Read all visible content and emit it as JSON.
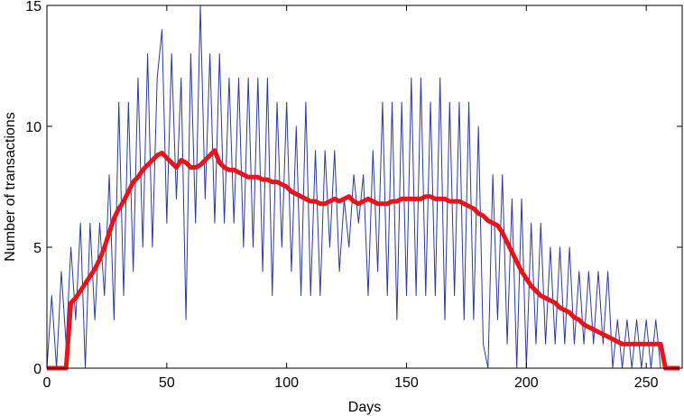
{
  "chart_data": {
    "type": "line",
    "x_label": "Days",
    "y_label": "Number of transactions",
    "x": [
      0,
      2,
      4,
      6,
      8,
      10,
      12,
      14,
      16,
      18,
      20,
      22,
      24,
      26,
      28,
      30,
      32,
      34,
      36,
      38,
      40,
      42,
      44,
      46,
      48,
      50,
      52,
      54,
      56,
      58,
      60,
      62,
      64,
      66,
      68,
      70,
      72,
      74,
      76,
      78,
      80,
      82,
      84,
      86,
      88,
      90,
      92,
      94,
      96,
      98,
      100,
      102,
      104,
      106,
      108,
      110,
      112,
      114,
      116,
      118,
      120,
      122,
      124,
      126,
      128,
      130,
      132,
      134,
      136,
      138,
      140,
      142,
      144,
      146,
      148,
      150,
      152,
      154,
      156,
      158,
      160,
      162,
      164,
      166,
      168,
      170,
      172,
      174,
      176,
      178,
      180,
      182,
      184,
      186,
      188,
      190,
      192,
      194,
      196,
      198,
      200,
      202,
      204,
      206,
      208,
      210,
      212,
      214,
      216,
      218,
      220,
      222,
      224,
      226,
      228,
      230,
      232,
      234,
      236,
      238,
      240,
      242,
      244,
      246,
      248,
      250,
      252,
      254,
      256,
      258,
      260,
      262,
      264
    ],
    "series": [
      {
        "color": "#2b3a9e",
        "width": 1,
        "values": [
          0,
          3,
          0,
          4,
          1,
          5,
          2,
          6,
          0,
          6,
          2,
          6,
          3,
          8,
          2,
          11,
          3,
          11,
          4,
          12,
          5,
          13,
          5,
          12,
          14,
          6,
          13,
          7,
          12,
          2,
          13,
          6,
          15,
          7,
          13,
          6,
          13,
          6,
          12,
          6,
          12,
          5,
          12,
          5,
          12,
          4,
          12,
          3,
          11,
          5,
          11,
          4,
          10,
          3,
          11,
          3,
          9,
          3,
          9,
          5,
          9,
          4,
          7,
          5,
          8,
          6,
          8,
          3,
          9,
          4,
          11,
          3,
          11,
          2,
          11,
          3,
          12,
          3,
          12,
          3,
          11,
          3,
          12,
          2,
          11,
          3,
          11,
          2,
          11,
          2,
          10,
          1,
          0,
          8,
          2,
          8,
          1,
          7,
          0,
          7,
          0,
          6,
          1,
          6,
          1,
          5,
          1,
          5,
          1,
          5,
          1,
          4,
          1,
          4,
          1,
          4,
          1,
          4,
          0,
          2,
          0,
          2,
          0,
          2,
          0,
          2,
          0,
          2,
          0,
          0,
          0,
          0,
          0
        ]
      },
      {
        "color": "#e8141b",
        "width": 5,
        "values": [
          0,
          0,
          0,
          0,
          0,
          2.7,
          2.9,
          3.2,
          3.5,
          3.8,
          4.1,
          4.5,
          5,
          5.6,
          6.2,
          6.6,
          6.9,
          7.3,
          7.7,
          7.9,
          8.2,
          8.4,
          8.6,
          8.8,
          8.9,
          8.7,
          8.5,
          8.3,
          8.6,
          8.5,
          8.3,
          8.3,
          8.4,
          8.6,
          8.8,
          9,
          8.5,
          8.3,
          8.2,
          8.2,
          8.1,
          8,
          7.9,
          7.9,
          7.9,
          7.8,
          7.8,
          7.7,
          7.7,
          7.6,
          7.5,
          7.3,
          7.2,
          7.1,
          7,
          6.9,
          6.9,
          6.8,
          6.8,
          6.9,
          7,
          6.9,
          7,
          7.1,
          6.9,
          6.8,
          6.9,
          7,
          6.9,
          6.8,
          6.8,
          6.8,
          6.9,
          6.9,
          7,
          7,
          7,
          7,
          7,
          7.1,
          7.1,
          7,
          7,
          7,
          6.9,
          6.9,
          6.9,
          6.8,
          6.7,
          6.6,
          6.4,
          6.3,
          6.1,
          6,
          5.9,
          5.6,
          5.2,
          4.8,
          4.4,
          4,
          3.7,
          3.4,
          3.2,
          3,
          2.9,
          2.8,
          2.7,
          2.5,
          2.4,
          2.3,
          2.1,
          2,
          1.8,
          1.7,
          1.6,
          1.5,
          1.4,
          1.3,
          1.2,
          1.1,
          1,
          1,
          1,
          1,
          1,
          1,
          1,
          1,
          1,
          0,
          0,
          0,
          0
        ]
      }
    ],
    "xlim": [
      0,
      265
    ],
    "ylim": [
      0,
      15
    ],
    "xticks": [
      0,
      50,
      100,
      150,
      200,
      250
    ],
    "yticks": [
      0,
      5,
      10,
      15
    ]
  }
}
